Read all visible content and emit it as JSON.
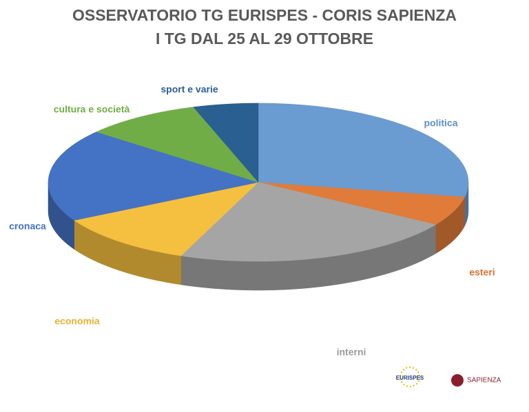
{
  "chart_data": {
    "type": "pie3d",
    "title": "OSSERVATORIO TG EURISPES - CORIS SAPIENZA",
    "subtitle": "I TG DAL 25 AL 29 OTTOBRE",
    "categories": [
      "politica",
      "esteri",
      "interni",
      "economia",
      "cronaca",
      "cultura e società",
      "sport e varie"
    ],
    "values": [
      28,
      6,
      22,
      11,
      19,
      9,
      5
    ],
    "colors": [
      "#6a9bd1",
      "#e07b39",
      "#a5a5a5",
      "#f5bf3f",
      "#4472c4",
      "#70ad47",
      "#2a5f92"
    ]
  },
  "logos": [
    "EURISPES",
    "SAPIENZA"
  ]
}
